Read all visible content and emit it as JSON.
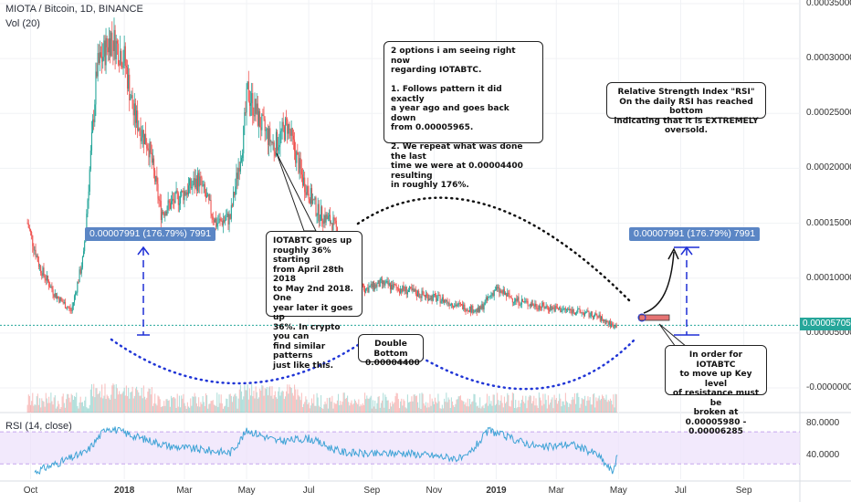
{
  "header": {
    "symbol_line": "MIOTA / Bitcoin, 1D, BINANCE",
    "volume_label": "Vol (20)",
    "rsi_label": "RSI (14, close)"
  },
  "notes": {
    "options": "2 options i am seeing right now\nregarding IOTABTC.\n\n1. Follows pattern it did exactly\na year ago and goes back down\nfrom 0.00005965.\n\n2. We repeat what was done the last\ntime we were at 0.00004400 resulting\nin roughly 176%.",
    "rsi": "Relative Strength Index \"RSI\"\nOn the daily RSI has reached bottom\nindicating that it is EXTREMELY oversold.",
    "pattern": "IOTABTC goes up\nroughly 36% starting\nfrom April 28th 2018\nto May 2nd 2018. One\nyear later it goes up\n36%. In crypto you can\nfind similar patterns\njust like this.",
    "double_bottom": "Double Bottom\n0.00004400",
    "resistance": "In order for IOTABTC\nto move up Key level\nof resistance must be\nbroken at\n0.00005980 - 0.00006285"
  },
  "measure_tags": {
    "left": "0.00007991 (176.79%) 7991",
    "right": "0.00007991 (176.79%) 7991"
  },
  "colors": {
    "up": "#26a69a",
    "down": "#ef5350",
    "measure": "#1e2fd6",
    "tag_bg": "#5b86c5",
    "rsi_line": "#3fa3d6",
    "rsi_band": "#ede0fb",
    "resistance_zone": "#e57373"
  },
  "chart_data": [
    {
      "type": "line",
      "title": "MIOTA / Bitcoin, 1D, BINANCE",
      "xlabel": "",
      "ylabel": "",
      "y_axis_ticks": [
        "0.00035000",
        "0.00030000",
        "0.00025000",
        "0.00020000",
        "0.00015000",
        "0.00010000",
        "0.00005000",
        "-0.00000000"
      ],
      "x_axis_ticks": [
        "Oct",
        "2018",
        "Mar",
        "May",
        "Jul",
        "Sep",
        "Nov",
        "2019",
        "Mar",
        "May",
        "Jul",
        "Sep"
      ],
      "current_price_label": "0.00005705",
      "grid": true,
      "series": [
        {
          "x": [
            "2017-09-28",
            "2017-10-10",
            "2017-10-25",
            "2017-11-10",
            "2017-11-22",
            "2017-12-05",
            "2017-12-19",
            "2018-01-01",
            "2018-01-10",
            "2018-01-25",
            "2018-02-06",
            "2018-02-25",
            "2018-03-15",
            "2018-04-01",
            "2018-04-15",
            "2018-04-28",
            "2018-05-02",
            "2018-05-15",
            "2018-05-28",
            "2018-06-10",
            "2018-06-25",
            "2018-07-10",
            "2018-07-25",
            "2018-08-10",
            "2018-08-25",
            "2018-09-10",
            "2018-09-30",
            "2018-10-20",
            "2018-11-10",
            "2018-11-25",
            "2018-12-15",
            "2018-12-31",
            "2019-01-20",
            "2019-02-10",
            "2019-03-01",
            "2019-03-20",
            "2019-04-10",
            "2019-04-25"
          ],
          "values": [
            0.00015,
            0.00011,
            8.5e-05,
            7e-05,
            0.00012,
            0.00029,
            0.00032,
            0.0003,
            0.00025,
            0.00022,
            0.00016,
            0.000175,
            0.00019,
            0.00015,
            0.000155,
            0.00023,
            0.00027,
            0.00024,
            0.00022,
            0.00024,
            0.00019,
            0.00016,
            0.00015,
            0.00012,
            9e-05,
            9.5e-05,
            9e-05,
            8.5e-05,
            8e-05,
            7.5e-05,
            7e-05,
            9e-05,
            8e-05,
            7.5e-05,
            7.2e-05,
            7e-05,
            6.5e-05,
            5.7e-05
          ]
        }
      ]
    },
    {
      "type": "line",
      "title": "RSI (14, close)",
      "y_axis_ticks": [
        "80.0000",
        "40.0000"
      ],
      "series": [
        {
          "x": [
            "2017-10-05",
            "2017-11-01",
            "2017-11-25",
            "2017-12-15",
            "2018-01-15",
            "2018-02-15",
            "2018-03-15",
            "2018-04-15",
            "2018-05-02",
            "2018-06-01",
            "2018-07-01",
            "2018-08-01",
            "2018-09-01",
            "2018-10-01",
            "2018-11-01",
            "2018-12-01",
            "2018-12-25",
            "2019-01-15",
            "2019-02-15",
            "2019-03-15",
            "2019-04-10",
            "2019-04-25",
            "2019-04-30"
          ],
          "values": [
            20,
            33,
            45,
            76,
            63,
            52,
            48,
            44,
            72,
            58,
            62,
            45,
            42,
            44,
            40,
            36,
            72,
            62,
            50,
            55,
            42,
            20,
            40
          ]
        }
      ]
    }
  ]
}
